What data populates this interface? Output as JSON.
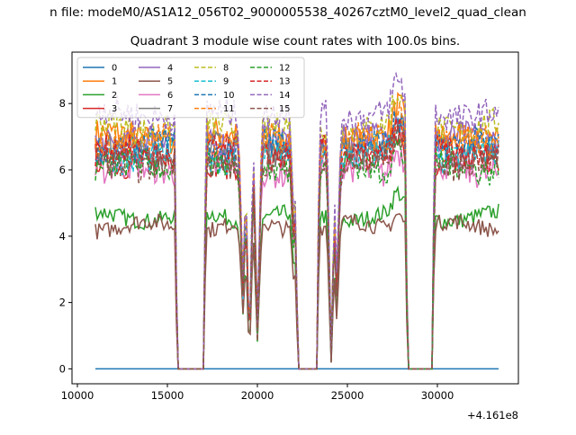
{
  "header": {
    "suptitle": "n file: modeM0/AS1A12_056T02_9000005538_40267cztM0_level2_quad_clean"
  },
  "chart_data": {
    "type": "line",
    "title": "Quadrant 3 module wise count rates with 100.0s bins.",
    "xlabel": "",
    "ylabel": "",
    "x_offset_label": "+4.161e8",
    "xlim": [
      9700,
      34500
    ],
    "ylim": [
      -0.45,
      9.55
    ],
    "xticks": [
      10000,
      15000,
      20000,
      25000,
      30000
    ],
    "yticks": [
      0,
      2,
      4,
      6,
      8
    ],
    "legend_position": "top-left",
    "legend_columns": 4,
    "x_range": [
      11000,
      33400
    ],
    "bin_seconds": 100,
    "gaps": [
      [
        15550,
        17000
      ],
      [
        22250,
        23300
      ],
      [
        28350,
        29700
      ]
    ],
    "dips": [
      [
        19200,
        2.5
      ],
      [
        19550,
        0.4
      ],
      [
        20000,
        1.3
      ],
      [
        22050,
        4.0
      ],
      [
        24100,
        0.3
      ],
      [
        24400,
        2.5
      ]
    ],
    "bump_center": 27800,
    "series": [
      {
        "name": "0",
        "color": "#1f77b4",
        "dash": "solid",
        "level": 0.0
      },
      {
        "name": "1",
        "color": "#ff7f0e",
        "dash": "solid",
        "level": 7.0
      },
      {
        "name": "2",
        "color": "#2ca02c",
        "dash": "solid",
        "level": 4.6
      },
      {
        "name": "3",
        "color": "#d62728",
        "dash": "solid",
        "level": 6.3
      },
      {
        "name": "4",
        "color": "#9467bd",
        "dash": "solid",
        "level": 6.9
      },
      {
        "name": "5",
        "color": "#8c564b",
        "dash": "solid",
        "level": 4.3
      },
      {
        "name": "6",
        "color": "#e377c2",
        "dash": "solid",
        "level": 6.0
      },
      {
        "name": "7",
        "color": "#7f7f7f",
        "dash": "solid",
        "level": 6.6
      },
      {
        "name": "8",
        "color": "#bcbd22",
        "dash": "dashed",
        "level": 7.3
      },
      {
        "name": "9",
        "color": "#17becf",
        "dash": "dashed",
        "level": 6.4
      },
      {
        "name": "10",
        "color": "#1f77b4",
        "dash": "dashed",
        "level": 6.7
      },
      {
        "name": "11",
        "color": "#ff7f0e",
        "dash": "dashed",
        "level": 6.9
      },
      {
        "name": "12",
        "color": "#2ca02c",
        "dash": "dashed",
        "level": 6.1
      },
      {
        "name": "13",
        "color": "#d62728",
        "dash": "dashed",
        "level": 6.5
      },
      {
        "name": "14",
        "color": "#9467bd",
        "dash": "dashed",
        "level": 7.7
      },
      {
        "name": "15",
        "color": "#8c564b",
        "dash": "dashed",
        "level": 6.2
      }
    ]
  }
}
